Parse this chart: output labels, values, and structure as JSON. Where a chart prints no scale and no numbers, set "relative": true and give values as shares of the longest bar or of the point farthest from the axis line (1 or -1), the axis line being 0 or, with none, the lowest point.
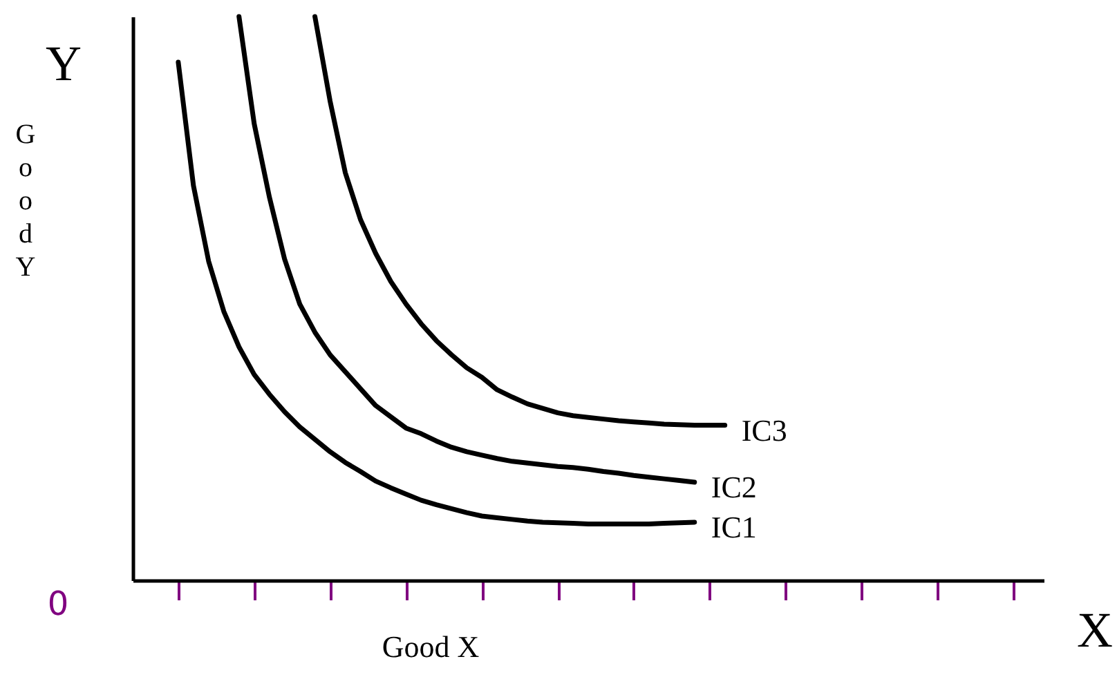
{
  "chart_data": {
    "type": "line",
    "relative": true,
    "xlabel": "Good X",
    "ylabel": "Good Y",
    "annotations": [
      "Y",
      "X",
      "0"
    ],
    "categories": [
      null,
      null,
      null,
      null,
      null,
      null,
      null,
      null,
      null,
      null,
      null,
      null,
      null,
      null,
      null,
      null,
      null,
      null,
      null,
      null,
      null,
      null,
      null,
      null,
      null,
      null,
      null,
      null,
      null,
      null,
      null,
      null,
      null,
      null,
      null,
      null,
      null,
      null,
      null,
      null,
      null,
      null,
      null,
      null,
      null,
      null,
      null,
      null,
      null,
      null,
      null,
      null,
      null,
      null,
      null,
      null,
      null,
      null,
      null,
      null,
      null
    ],
    "line_style": "solid",
    "series": [
      {
        "name": "IC1",
        "color": "#000000",
        "values": [
          null,
          null,
          null,
          0.919,
          0.7,
          0.566,
          0.477,
          0.414,
          0.365,
          0.33,
          0.299,
          0.272,
          0.25,
          0.228,
          0.209,
          0.193,
          0.176,
          0.164,
          0.153,
          0.142,
          0.134,
          0.127,
          0.12,
          0.114,
          0.111,
          0.108,
          0.105,
          0.103,
          0.102,
          0.101,
          0.1,
          0.1,
          0.1,
          0.1,
          0.1,
          0.101,
          0.102,
          0.103,
          null,
          null,
          null,
          null,
          null,
          null,
          null,
          null,
          null,
          null,
          null,
          null,
          null,
          null,
          null,
          null,
          null,
          null,
          null,
          null,
          null,
          null,
          null
        ]
      },
      {
        "name": "IC2",
        "color": "#000000",
        "values": [
          null,
          null,
          null,
          null,
          null,
          null,
          null,
          1.0,
          0.81,
          0.68,
          0.57,
          0.49,
          0.44,
          0.4,
          0.37,
          0.34,
          0.31,
          0.29,
          0.27,
          0.26,
          0.247,
          0.236,
          0.228,
          0.222,
          0.216,
          0.211,
          0.208,
          0.205,
          0.202,
          0.2,
          0.197,
          0.193,
          0.19,
          0.186,
          0.183,
          0.18,
          0.177,
          0.174,
          null,
          null,
          null,
          null,
          null,
          null,
          null,
          null,
          null,
          null,
          null,
          null,
          null,
          null,
          null,
          null,
          null,
          null,
          null,
          null,
          null,
          null,
          null
        ]
      },
      {
        "name": "IC3",
        "color": "#000000",
        "values": [
          null,
          null,
          null,
          null,
          null,
          null,
          null,
          null,
          null,
          null,
          null,
          null,
          1.0,
          0.85,
          0.723,
          0.64,
          0.58,
          0.53,
          0.49,
          0.455,
          0.425,
          0.4,
          0.377,
          0.36,
          0.338,
          0.325,
          0.313,
          0.305,
          0.297,
          0.292,
          0.289,
          0.286,
          0.283,
          0.281,
          0.279,
          0.277,
          0.276,
          0.275,
          0.275,
          0.275,
          null,
          null,
          null,
          null,
          null,
          null,
          null,
          null,
          null,
          null,
          null,
          null,
          null,
          null,
          null,
          null,
          null,
          null,
          null,
          null,
          null
        ]
      }
    ]
  }
}
